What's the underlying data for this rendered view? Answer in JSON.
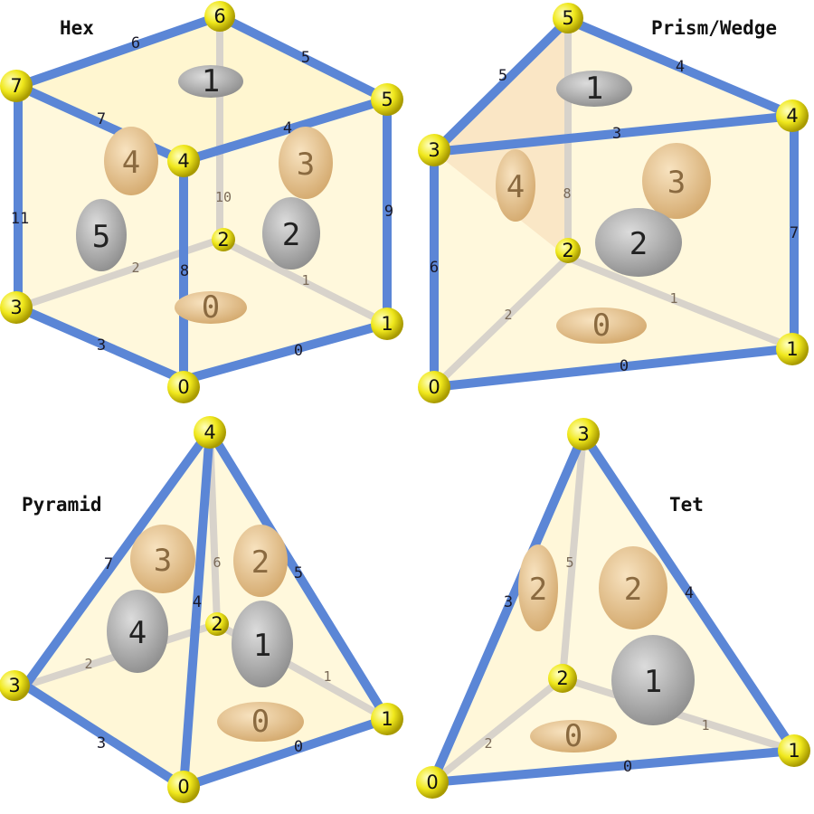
{
  "panels": [
    {
      "title": "Hex",
      "vertex_labels": [
        "0",
        "1",
        "2",
        "3",
        "4",
        "5",
        "6",
        "7"
      ],
      "edge_labels": [
        "0",
        "1",
        "2",
        "3",
        "4",
        "5",
        "6",
        "7",
        "8",
        "9",
        "10",
        "11"
      ],
      "face_labels": [
        "0",
        "1",
        "2",
        "3",
        "4",
        "5"
      ]
    },
    {
      "title": "Prism/Wedge",
      "vertex_labels": [
        "0",
        "1",
        "2",
        "3",
        "4",
        "5"
      ],
      "edge_labels": [
        "0",
        "1",
        "2",
        "3",
        "4",
        "5",
        "6",
        "7",
        "8"
      ],
      "face_labels": [
        "0",
        "1",
        "2",
        "3",
        "4"
      ]
    },
    {
      "title": "Pyramid",
      "vertex_labels": [
        "0",
        "1",
        "2",
        "3",
        "4"
      ],
      "edge_labels": [
        "0",
        "1",
        "2",
        "3",
        "4",
        "5",
        "6",
        "7"
      ],
      "face_labels": [
        "0",
        "1",
        "2",
        "3",
        "4"
      ]
    },
    {
      "title": "Tet",
      "vertex_labels": [
        "0",
        "1",
        "2",
        "3"
      ],
      "edge_labels": [
        "0",
        "1",
        "2",
        "3",
        "4",
        "5"
      ],
      "face_labels": [
        "0",
        "1",
        "2"
      ]
    }
  ],
  "colors": {
    "edge": "#5b86d6",
    "hidden_edge": "#d7d2ca",
    "vertex": "#f2ec1e",
    "face_fill": "#fff5c8",
    "disk_tan": "#e8c79a",
    "disk_gray": "#a8a8a8"
  }
}
